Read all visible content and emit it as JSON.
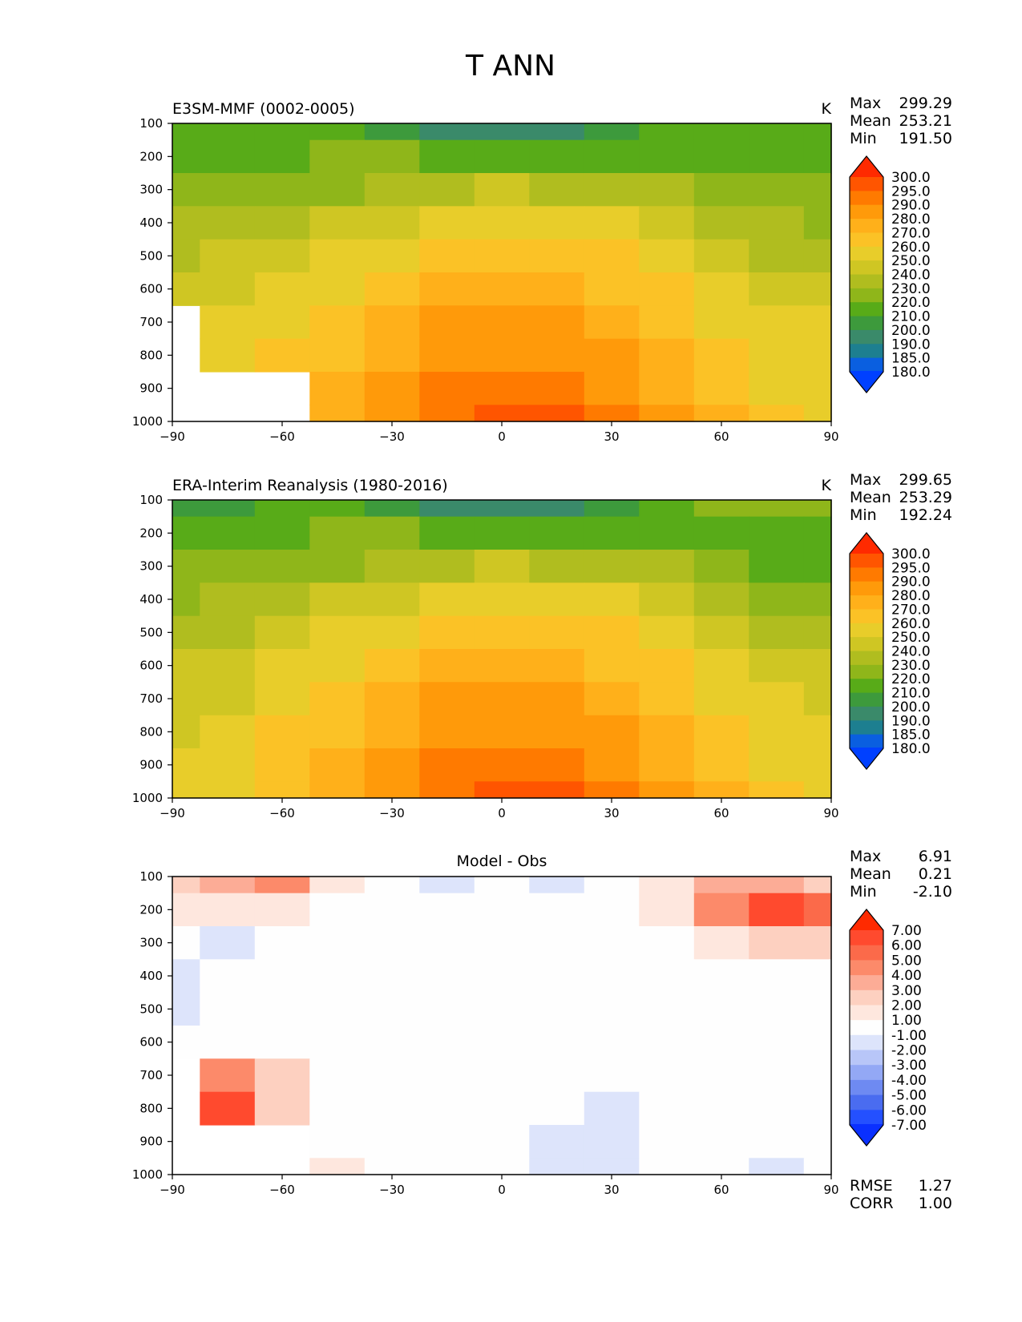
{
  "figure": {
    "title": "T ANN"
  },
  "panels": [
    {
      "id": "model",
      "left_title": "E3SM-MMF (0002-0005)",
      "center_title": "",
      "units": "K",
      "stats": [
        {
          "label": "Max",
          "value": "299.29"
        },
        {
          "label": "Mean",
          "value": "253.21"
        },
        {
          "label": "Min",
          "value": "191.50"
        }
      ],
      "colorbar": {
        "levels": [
          "300.0",
          "295.0",
          "290.0",
          "280.0",
          "270.0",
          "260.0",
          "250.0",
          "240.0",
          "230.0",
          "220.0",
          "210.0",
          "200.0",
          "190.0",
          "185.0",
          "180.0"
        ],
        "colors": [
          "#ff2a00",
          "#ff5500",
          "#ff7a00",
          "#ff9a0a",
          "#ffb01a",
          "#fbc226",
          "#e8cd2a",
          "#cfc623",
          "#b0bd1f",
          "#8fb61a",
          "#58ab18",
          "#3d9a3c",
          "#3a8a6a",
          "#1d7f90",
          "#0a5fe0",
          "#0040ff"
        ]
      },
      "bottom_stats": []
    },
    {
      "id": "obs",
      "left_title": "ERA-Interim Reanalysis (1980-2016)",
      "center_title": "",
      "units": "K",
      "stats": [
        {
          "label": "Max",
          "value": "299.65"
        },
        {
          "label": "Mean",
          "value": "253.29"
        },
        {
          "label": "Min",
          "value": "192.24"
        }
      ],
      "colorbar": {
        "levels": [
          "300.0",
          "295.0",
          "290.0",
          "280.0",
          "270.0",
          "260.0",
          "250.0",
          "240.0",
          "230.0",
          "220.0",
          "210.0",
          "200.0",
          "190.0",
          "185.0",
          "180.0"
        ],
        "colors": [
          "#ff2a00",
          "#ff5500",
          "#ff7a00",
          "#ff9a0a",
          "#ffb01a",
          "#fbc226",
          "#e8cd2a",
          "#cfc623",
          "#b0bd1f",
          "#8fb61a",
          "#58ab18",
          "#3d9a3c",
          "#3a8a6a",
          "#1d7f90",
          "#0a5fe0",
          "#0040ff"
        ]
      },
      "bottom_stats": []
    },
    {
      "id": "diff",
      "left_title": "",
      "center_title": "Model - Obs",
      "units": "",
      "stats": [
        {
          "label": "Max",
          "value": "6.91"
        },
        {
          "label": "Mean",
          "value": "0.21"
        },
        {
          "label": "Min",
          "value": "-2.10"
        }
      ],
      "colorbar": {
        "levels": [
          "7.00",
          "6.00",
          "5.00",
          "4.00",
          "3.00",
          "2.00",
          "1.00",
          "-1.00",
          "-2.00",
          "-3.00",
          "-4.00",
          "-5.00",
          "-6.00",
          "-7.00"
        ],
        "colors": [
          "#ff2a00",
          "#ff4a2e",
          "#fb6a4a",
          "#fc8a6a",
          "#fcac96",
          "#fdd0c0",
          "#fee7de",
          "#fefefe",
          "#dde4fb",
          "#b8c6f8",
          "#93a8f5",
          "#6e8af2",
          "#4a6cf0",
          "#2450ff",
          "#0a30ff"
        ]
      },
      "bottom_stats": [
        {
          "label": "RMSE",
          "value": "1.27"
        },
        {
          "label": "CORR",
          "value": "1.00"
        }
      ]
    }
  ],
  "chart_data": [
    {
      "type": "heatmap",
      "title": "E3SM-MMF (0002-0005)",
      "subtitle": "T ANN",
      "units": "K",
      "xlabel": "",
      "ylabel": "",
      "x_ticks": [
        "−90",
        "−60",
        "−30",
        "0",
        "30",
        "60",
        "90"
      ],
      "y_ticks": [
        "100",
        "200",
        "300",
        "400",
        "500",
        "600",
        "700",
        "800",
        "900",
        "1000"
      ],
      "xlim": [
        -90,
        90
      ],
      "ylim": [
        1000,
        100
      ],
      "lat": [
        -90,
        -75,
        -60,
        -45,
        -30,
        -15,
        0,
        15,
        30,
        45,
        60,
        75,
        90
      ],
      "pressure": [
        100,
        200,
        300,
        400,
        500,
        600,
        700,
        800,
        900,
        1000
      ],
      "values": [
        [
          210,
          214,
          215,
          212,
          205,
          195,
          190,
          192,
          200,
          214,
          216,
          217,
          216
        ],
        [
          218,
          219,
          219,
          220,
          222,
          216,
          212,
          215,
          219,
          219,
          218,
          218,
          218
        ],
        [
          222,
          223,
          225,
          228,
          233,
          238,
          240,
          238,
          235,
          230,
          224,
          222,
          222
        ],
        [
          230,
          232,
          235,
          240,
          248,
          254,
          256,
          255,
          250,
          243,
          236,
          231,
          229
        ],
        [
          236,
          240,
          244,
          250,
          258,
          264,
          266,
          265,
          260,
          252,
          244,
          238,
          236
        ],
        [
          244,
          248,
          252,
          258,
          266,
          272,
          274,
          273,
          268,
          260,
          252,
          245,
          242
        ],
        [
          null,
          252,
          258,
          264,
          272,
          280,
          282,
          281,
          276,
          266,
          258,
          252,
          250
        ],
        [
          null,
          255,
          262,
          268,
          276,
          285,
          288,
          287,
          282,
          272,
          262,
          256,
          253
        ],
        [
          null,
          null,
          null,
          271,
          280,
          290,
          294,
          293,
          287,
          276,
          266,
          258,
          256
        ],
        [
          null,
          null,
          null,
          273,
          284,
          294,
          298,
          297,
          290,
          280,
          270,
          262,
          258
        ]
      ]
    },
    {
      "type": "heatmap",
      "title": "ERA-Interim Reanalysis (1980-2016)",
      "subtitle": "T ANN",
      "units": "K",
      "xlabel": "",
      "ylabel": "",
      "x_ticks": [
        "−90",
        "−60",
        "−30",
        "0",
        "30",
        "60",
        "90"
      ],
      "y_ticks": [
        "100",
        "200",
        "300",
        "400",
        "500",
        "600",
        "700",
        "800",
        "900",
        "1000"
      ],
      "xlim": [
        -90,
        90
      ],
      "ylim": [
        1000,
        100
      ],
      "lat": [
        -90,
        -75,
        -60,
        -45,
        -30,
        -15,
        0,
        15,
        30,
        45,
        60,
        75,
        90
      ],
      "pressure": [
        100,
        200,
        300,
        400,
        500,
        600,
        700,
        800,
        900,
        1000
      ],
      "values": [
        [
          206,
          208,
          212,
          211,
          205,
          195,
          190,
          192,
          200,
          212,
          220,
          222,
          222
        ],
        [
          216,
          217,
          218,
          220,
          222,
          216,
          212,
          215,
          219,
          218,
          215,
          216,
          218
        ],
        [
          220,
          222,
          224,
          228,
          233,
          238,
          240,
          238,
          235,
          230,
          222,
          219,
          219
        ],
        [
          228,
          230,
          234,
          240,
          248,
          254,
          256,
          255,
          250,
          243,
          234,
          229,
          227
        ],
        [
          235,
          238,
          243,
          250,
          258,
          264,
          266,
          265,
          260,
          252,
          242,
          236,
          234
        ],
        [
          240,
          244,
          250,
          258,
          266,
          272,
          274,
          273,
          268,
          260,
          250,
          244,
          241
        ],
        [
          242,
          248,
          256,
          264,
          272,
          280,
          282,
          281,
          276,
          266,
          256,
          250,
          248
        ],
        [
          246,
          252,
          260,
          268,
          276,
          285,
          288,
          287,
          282,
          272,
          261,
          254,
          251
        ],
        [
          250,
          256,
          264,
          271,
          280,
          290,
          294,
          293,
          287,
          276,
          266,
          258,
          255
        ],
        [
          253,
          259,
          268,
          273,
          284,
          294,
          298,
          297,
          290,
          280,
          270,
          262,
          258
        ]
      ]
    },
    {
      "type": "heatmap",
      "title": "Model - Obs",
      "subtitle": "T ANN",
      "units": "K",
      "xlabel": "",
      "ylabel": "",
      "x_ticks": [
        "−90",
        "−60",
        "−30",
        "0",
        "30",
        "60",
        "90"
      ],
      "y_ticks": [
        "100",
        "200",
        "300",
        "400",
        "500",
        "600",
        "700",
        "800",
        "900",
        "1000"
      ],
      "xlim": [
        -90,
        90
      ],
      "ylim": [
        1000,
        100
      ],
      "rmse": 1.27,
      "corr": 1.0,
      "lat": [
        -90,
        -75,
        -60,
        -45,
        -30,
        -15,
        0,
        15,
        30,
        45,
        60,
        75,
        90
      ],
      "pressure": [
        100,
        200,
        300,
        400,
        500,
        600,
        700,
        800,
        900,
        1000
      ],
      "values": [
        [
          2.5,
          3.2,
          4.2,
          1.2,
          0,
          -1.1,
          0,
          -1.2,
          0,
          1.5,
          3.5,
          3.0,
          2.0
        ],
        [
          1.2,
          1.5,
          1.0,
          0,
          0,
          0,
          0,
          0,
          0,
          1.5,
          4.5,
          6.0,
          5.5
        ],
        [
          0,
          -1.1,
          0,
          0,
          0,
          0,
          0,
          0,
          0,
          0,
          1.5,
          2.5,
          2.0
        ],
        [
          -1.2,
          0,
          0,
          0,
          0,
          0,
          0,
          0,
          0,
          0,
          0,
          0,
          0
        ],
        [
          -1.1,
          0,
          0,
          0,
          0,
          0,
          0,
          0,
          0,
          0,
          0,
          0,
          0
        ],
        [
          0,
          0,
          0,
          0,
          0,
          0,
          0,
          0,
          0,
          0,
          0,
          0,
          0
        ],
        [
          null,
          4.0,
          2.0,
          0,
          0,
          0,
          0,
          0,
          0,
          0,
          0,
          0,
          0
        ],
        [
          null,
          6.5,
          2.0,
          0,
          0,
          0,
          0,
          0,
          -1.1,
          0,
          0,
          0,
          0
        ],
        [
          null,
          null,
          null,
          0,
          0,
          0,
          0,
          -1.1,
          -1.2,
          0,
          0,
          0,
          0
        ],
        [
          null,
          null,
          null,
          1.5,
          0,
          0,
          0,
          -1.1,
          -1.1,
          0,
          0,
          -1.1,
          0
        ]
      ]
    }
  ]
}
